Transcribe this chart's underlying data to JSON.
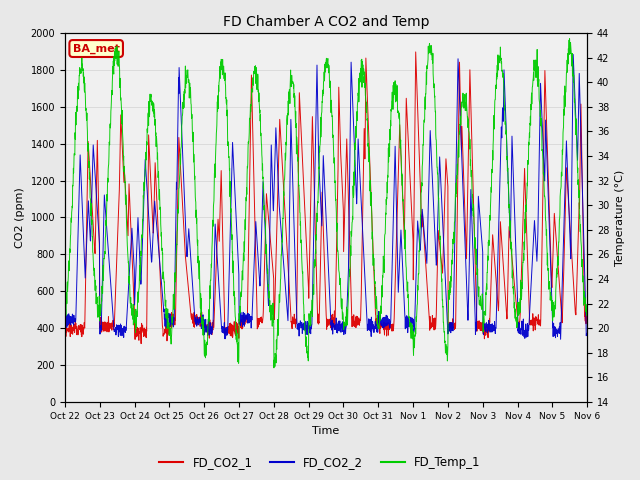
{
  "title": "FD Chamber A CO2 and Temp",
  "xlabel": "Time",
  "ylabel_left": "CO2 (ppm)",
  "ylabel_right": "Temperature (°C)",
  "ylim_left": [
    0,
    2000
  ],
  "ylim_right": [
    14,
    44
  ],
  "yticks_left": [
    0,
    200,
    400,
    600,
    800,
    1000,
    1200,
    1400,
    1600,
    1800,
    2000
  ],
  "yticks_right": [
    14,
    16,
    18,
    20,
    22,
    24,
    26,
    28,
    30,
    32,
    34,
    36,
    38,
    40,
    42,
    44
  ],
  "xtick_labels": [
    "Oct 22",
    "Oct 23",
    "Oct 24",
    "Oct 25",
    "Oct 26",
    "Oct 27",
    "Oct 28",
    "Oct 29",
    "Oct 30",
    "Oct 31",
    "Nov 1",
    "Nov 2",
    "Nov 3",
    "Nov 4",
    "Nov 5",
    "Nov 6"
  ],
  "color_co2_1": "#dd0000",
  "color_co2_2": "#0000cc",
  "color_temp": "#00cc00",
  "legend_labels": [
    "FD_CO2_1",
    "FD_CO2_2",
    "FD_Temp_1"
  ],
  "annotation_text": "BA_met",
  "annotation_color": "#cc0000",
  "annotation_bg": "#ffffcc",
  "grid_color": "#cccccc",
  "background_color": "#e8e8e8",
  "plot_bg": "#f0f0f0",
  "figwidth": 6.4,
  "figheight": 4.8,
  "dpi": 100
}
